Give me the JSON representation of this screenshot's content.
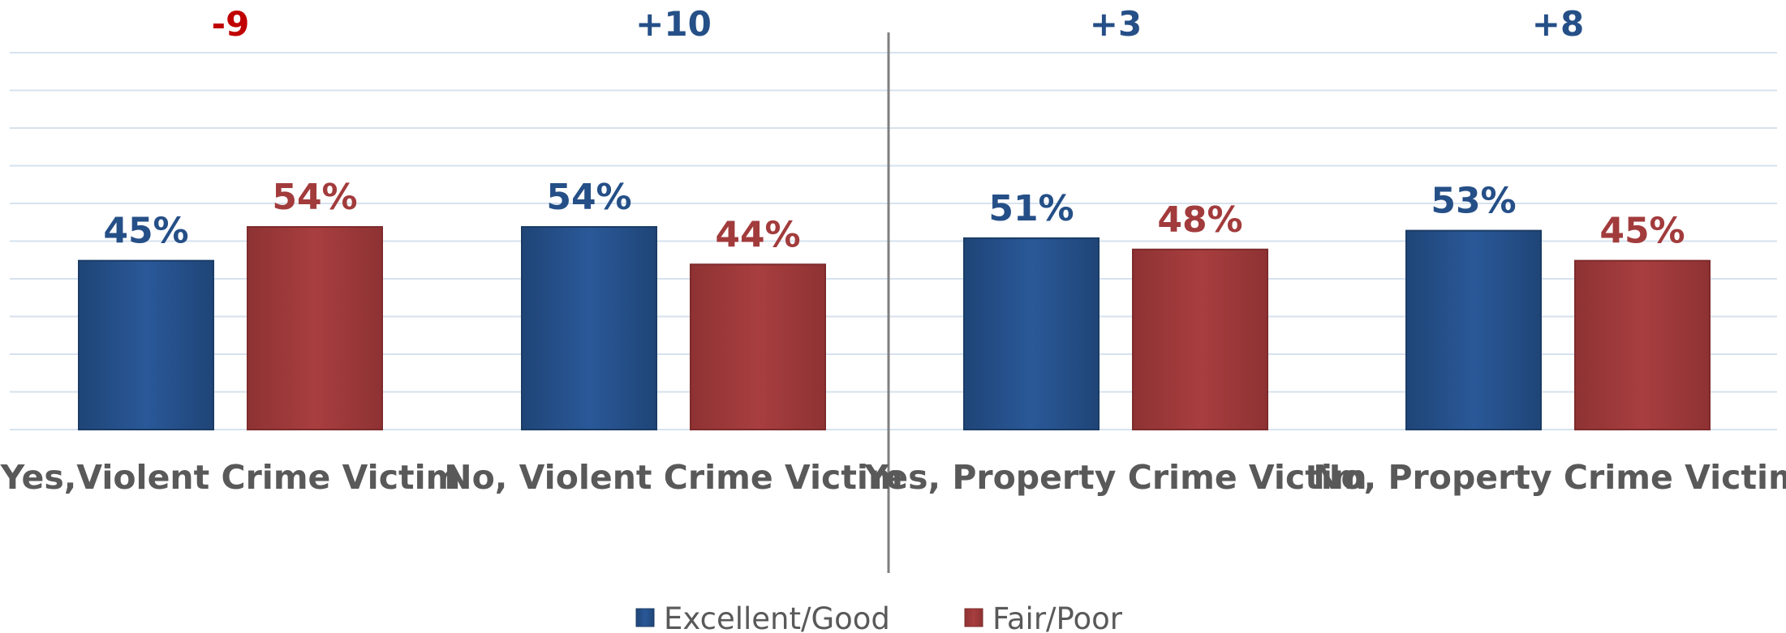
{
  "chart_data": {
    "type": "bar",
    "categories": [
      "Yes,Violent Crime Victim",
      "No, Violent Crime Victim",
      "Yes, Property Crime Victim",
      "No, Property Crime Victim"
    ],
    "series": [
      {
        "name": "Excellent/Good",
        "values": [
          45,
          54,
          51,
          53
        ],
        "labels": [
          "45%",
          "54%",
          "51%",
          "53%"
        ],
        "color": "#254f87"
      },
      {
        "name": "Fair/Poor",
        "values": [
          54,
          44,
          48,
          45
        ],
        "labels": [
          "54%",
          "44%",
          "48%",
          "45%"
        ],
        "color": "#a23b3c"
      }
    ],
    "differences": [
      {
        "text": "-9",
        "color": "#c00000"
      },
      {
        "text": "+10",
        "color": "#254f87"
      },
      {
        "text": "+3",
        "color": "#254f87"
      },
      {
        "text": "+8",
        "color": "#254f87"
      }
    ],
    "ylim": [
      0,
      100
    ],
    "grid": true,
    "legend_position": "bottom",
    "title": "",
    "xlabel": "",
    "ylabel": ""
  }
}
